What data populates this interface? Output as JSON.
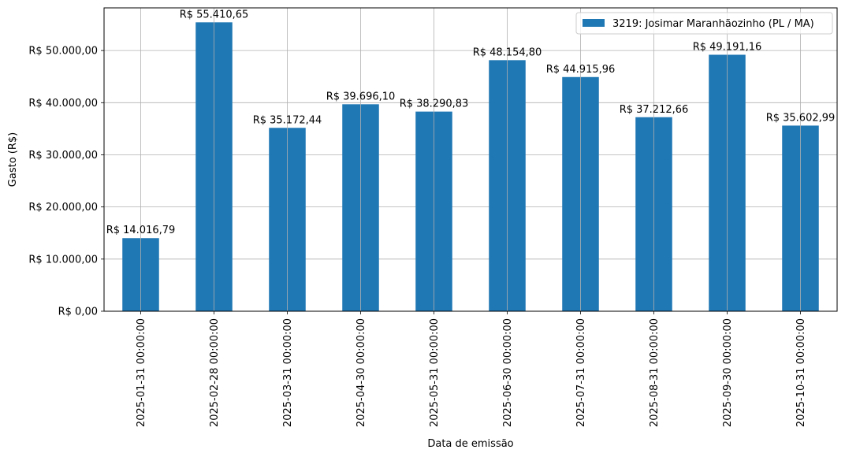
{
  "chart_data": {
    "type": "bar",
    "xlabel": "Data de emissão",
    "ylabel": "Gasto (R$)",
    "categories": [
      "2025-01-31 00:00:00",
      "2025-02-28 00:00:00",
      "2025-03-31 00:00:00",
      "2025-04-30 00:00:00",
      "2025-05-31 00:00:00",
      "2025-06-30 00:00:00",
      "2025-07-31 00:00:00",
      "2025-08-31 00:00:00",
      "2025-09-30 00:00:00",
      "2025-10-31 00:00:00"
    ],
    "series": [
      {
        "name": "3219: Josimar Maranhãozinho (PL / MA)",
        "color": "#1f77b4",
        "values": [
          14016.79,
          55410.65,
          35172.44,
          39696.1,
          38290.83,
          48154.8,
          44915.96,
          37212.66,
          49191.16,
          35602.99
        ],
        "data_labels": [
          "R$ 14.016,79",
          "R$ 55.410,65",
          "R$ 35.172,44",
          "R$ 39.696,10",
          "R$ 38.290,83",
          "R$ 48.154,80",
          "R$ 44.915,96",
          "R$ 37.212,66",
          "R$ 49.191,16",
          "R$ 35.602,99"
        ]
      }
    ],
    "ylim": [
      0,
      58180.68
    ],
    "yticks": [
      0,
      10000,
      20000,
      30000,
      40000,
      50000
    ],
    "ytick_labels": [
      "R$ 0,00",
      "R$ 10.000,00",
      "R$ 20.000,00",
      "R$ 30.000,00",
      "R$ 40.000,00",
      "R$ 50.000,00"
    ],
    "grid": true,
    "legend_position": "top-right"
  }
}
